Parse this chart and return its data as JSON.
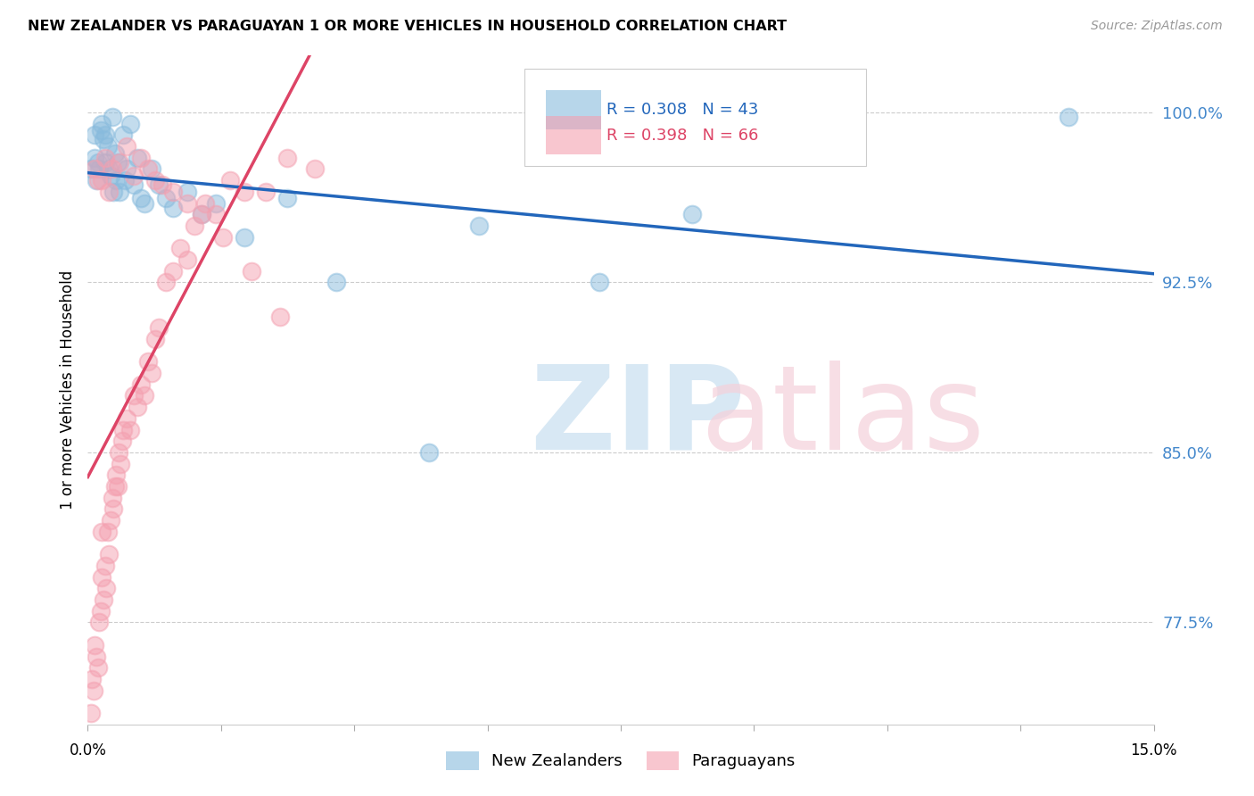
{
  "title": "NEW ZEALANDER VS PARAGUAYAN 1 OR MORE VEHICLES IN HOUSEHOLD CORRELATION CHART",
  "source": "Source: ZipAtlas.com",
  "ylabel": "1 or more Vehicles in Household",
  "x_min": 0.0,
  "x_max": 15.0,
  "y_min": 73.0,
  "y_max": 102.5,
  "yticks": [
    77.5,
    85.0,
    92.5,
    100.0
  ],
  "ytick_labels": [
    "77.5%",
    "85.0%",
    "92.5%",
    "100.0%"
  ],
  "nz_r": "0.308",
  "nz_n": "43",
  "py_r": "0.398",
  "py_n": "66",
  "nz_color": "#88bbdd",
  "py_color": "#f4a0b0",
  "nz_line_color": "#2266bb",
  "py_line_color": "#dd4466",
  "background_color": "#ffffff",
  "nz_x": [
    0.05,
    0.1,
    0.1,
    0.15,
    0.18,
    0.2,
    0.22,
    0.25,
    0.28,
    0.3,
    0.32,
    0.35,
    0.38,
    0.4,
    0.42,
    0.45,
    0.5,
    0.55,
    0.6,
    0.65,
    0.7,
    0.8,
    0.9,
    1.0,
    1.1,
    1.2,
    1.4,
    1.6,
    1.8,
    2.2,
    2.8,
    3.5,
    4.8,
    5.5,
    7.2,
    8.5,
    13.8,
    0.12,
    0.16,
    0.24,
    0.36,
    0.52,
    0.75
  ],
  "nz_y": [
    97.5,
    99.0,
    98.0,
    97.8,
    99.2,
    99.5,
    98.8,
    99.0,
    98.5,
    97.5,
    97.2,
    99.8,
    98.2,
    97.0,
    97.8,
    96.5,
    99.0,
    97.5,
    99.5,
    96.8,
    98.0,
    96.0,
    97.5,
    96.8,
    96.2,
    95.8,
    96.5,
    95.5,
    96.0,
    94.5,
    96.2,
    92.5,
    85.0,
    95.0,
    92.5,
    95.5,
    99.8,
    97.0,
    97.5,
    97.8,
    96.5,
    97.0,
    96.2
  ],
  "py_x": [
    0.04,
    0.06,
    0.08,
    0.1,
    0.12,
    0.14,
    0.16,
    0.18,
    0.2,
    0.22,
    0.24,
    0.26,
    0.28,
    0.3,
    0.32,
    0.34,
    0.36,
    0.38,
    0.4,
    0.42,
    0.44,
    0.46,
    0.48,
    0.5,
    0.55,
    0.6,
    0.65,
    0.7,
    0.75,
    0.8,
    0.85,
    0.9,
    0.95,
    1.0,
    1.1,
    1.2,
    1.3,
    1.4,
    1.5,
    1.65,
    1.8,
    2.0,
    2.2,
    2.5,
    2.8,
    3.2,
    0.15,
    0.25,
    0.35,
    0.45,
    0.55,
    0.65,
    0.75,
    0.85,
    0.95,
    1.05,
    1.2,
    1.4,
    1.6,
    1.9,
    2.3,
    2.7,
    0.1,
    0.2,
    0.3,
    0.2
  ],
  "py_y": [
    73.5,
    75.0,
    74.5,
    76.5,
    76.0,
    75.5,
    77.5,
    78.0,
    79.5,
    78.5,
    80.0,
    79.0,
    81.5,
    80.5,
    82.0,
    83.0,
    82.5,
    83.5,
    84.0,
    83.5,
    85.0,
    84.5,
    85.5,
    86.0,
    86.5,
    86.0,
    87.5,
    87.0,
    88.0,
    87.5,
    89.0,
    88.5,
    90.0,
    90.5,
    92.5,
    93.0,
    94.0,
    93.5,
    95.0,
    96.0,
    95.5,
    97.0,
    96.5,
    96.5,
    98.0,
    97.5,
    97.0,
    98.0,
    97.5,
    97.8,
    98.5,
    97.2,
    98.0,
    97.5,
    97.0,
    96.8,
    96.5,
    96.0,
    95.5,
    94.5,
    93.0,
    91.0,
    97.5,
    97.0,
    96.5,
    81.5
  ]
}
